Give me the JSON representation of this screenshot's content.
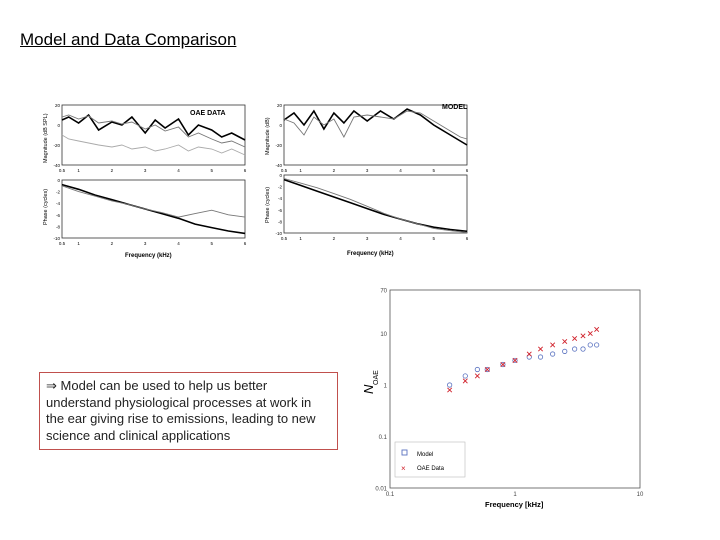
{
  "slide": {
    "title": "Model and Data Comparison",
    "callout_prefix": "⇒",
    "callout_text": "Model can be used to help us better understand physiological processes at work in the ear giving rise to emissions, leading to new science and clinical applications"
  },
  "figure_left": {
    "title": "OAE DATA",
    "ylabel_top": "Magnitude (dB SPL)",
    "ylabel_bottom": "Phase (cycles)",
    "xlabel": "Frequency (kHz)",
    "yticks_top": [
      "20",
      "0",
      "-20",
      "-40"
    ],
    "yticks_bottom": [
      "0",
      "-2",
      "-4",
      "-6",
      "-8",
      "-10"
    ],
    "xticks_top": [
      "0.5",
      "1",
      "2",
      "3",
      "4",
      "5",
      "6"
    ],
    "xticks_bottom": [
      "0.5",
      "1",
      "2",
      "3",
      "4",
      "5",
      "6"
    ]
  },
  "figure_right": {
    "title": "MODEL",
    "ylabel_top": "Magnitude (dB)",
    "ylabel_bottom": "Phase (cycles)",
    "xlabel": "Frequency (kHz)",
    "yticks_top": [
      "20",
      "0",
      "-20",
      "-40"
    ],
    "yticks_bottom": [
      "0",
      "-2",
      "-4",
      "-6",
      "-8",
      "-10"
    ],
    "xticks_top": [
      "0.5",
      "1",
      "2",
      "3",
      "4",
      "5",
      "6"
    ],
    "xticks_bottom": [
      "0.5",
      "1",
      "2",
      "3",
      "4",
      "5",
      "6"
    ]
  },
  "scatter": {
    "ylabel_main": "N",
    "ylabel_sub": "OAE",
    "xlabel": "Frequency [kHz]",
    "yticks": [
      "70",
      "10",
      "1",
      "0.1",
      "0.01"
    ],
    "xticks": [
      "0.1",
      "1",
      "10"
    ],
    "legend": [
      {
        "label": "Model",
        "color": "#5a72c0"
      },
      {
        "label": "OAE Data",
        "color": "#d0202a"
      }
    ]
  },
  "chart_data": [
    {
      "type": "line",
      "title": "OAE DATA",
      "ylabel": "Magnitude (dB SPL)",
      "xlabel": "Frequency (kHz)",
      "ylim": [
        -40,
        20
      ],
      "x": [
        0.5,
        0.7,
        1,
        1.3,
        1.6,
        2,
        2.3,
        2.6,
        3,
        3.3,
        3.6,
        4,
        4.3,
        4.6,
        5,
        5.3,
        5.6,
        6
      ],
      "series": [
        {
          "values": [
            5,
            8,
            2,
            10,
            -5,
            3,
            0,
            8,
            -8,
            5,
            -3,
            6,
            -10,
            0,
            -5,
            -12,
            -8,
            -15
          ]
        },
        {
          "values": [
            8,
            10,
            6,
            9,
            2,
            4,
            1,
            3,
            -4,
            0,
            -6,
            -2,
            -12,
            -8,
            -14,
            -18,
            -16,
            -22
          ]
        },
        {
          "values": [
            -10,
            -14,
            -16,
            -18,
            -20,
            -22,
            -20,
            -24,
            -22,
            -26,
            -24,
            -20,
            -26,
            -22,
            -24,
            -28,
            -24,
            -30
          ]
        }
      ]
    },
    {
      "type": "line",
      "ylabel": "Phase (cycles)",
      "xlabel": "Frequency (kHz)",
      "ylim": [
        -10,
        0
      ],
      "x": [
        0.5,
        1,
        1.5,
        2,
        2.5,
        3,
        3.5,
        4,
        4.5,
        5,
        5.5,
        6
      ],
      "series": [
        {
          "values": [
            -0.8,
            -1.6,
            -2.6,
            -3.4,
            -4.2,
            -5.0,
            -5.8,
            -6.6,
            -7.6,
            -8.2,
            -8.8,
            -9.2
          ]
        },
        {
          "values": [
            -1.0,
            -2.0,
            -2.8,
            -3.6,
            -4.2,
            -5.0,
            -5.6,
            -6.4,
            -5.8,
            -5.2,
            -6.0,
            -6.4
          ]
        }
      ]
    },
    {
      "type": "line",
      "title": "MODEL",
      "ylabel": "Magnitude (dB)",
      "xlabel": "Frequency (kHz)",
      "ylim": [
        -40,
        20
      ],
      "x": [
        0.5,
        0.8,
        1.1,
        1.4,
        1.7,
        2,
        2.3,
        2.6,
        3,
        3.4,
        3.8,
        4.2,
        4.6,
        5,
        5.4,
        5.8,
        6
      ],
      "series": [
        {
          "values": [
            5,
            12,
            0,
            14,
            -4,
            12,
            2,
            14,
            4,
            14,
            6,
            16,
            10,
            0,
            -8,
            -16,
            -20
          ]
        },
        {
          "values": [
            6,
            2,
            -10,
            8,
            0,
            6,
            -12,
            8,
            10,
            8,
            6,
            14,
            12,
            4,
            -4,
            -12,
            -14
          ]
        }
      ]
    },
    {
      "type": "line",
      "ylabel": "Phase (cycles)",
      "xlabel": "Frequency (kHz)",
      "ylim": [
        -10,
        0
      ],
      "x": [
        0.5,
        1,
        1.5,
        2,
        2.5,
        3,
        3.5,
        4,
        4.5,
        5,
        5.5,
        6
      ],
      "series": [
        {
          "values": [
            -0.8,
            -1.8,
            -2.8,
            -3.8,
            -4.8,
            -5.8,
            -6.8,
            -7.6,
            -8.4,
            -9.0,
            -9.4,
            -9.7
          ]
        },
        {
          "values": [
            -0.6,
            -1.4,
            -2.2,
            -3.2,
            -4.2,
            -5.4,
            -6.6,
            -7.6,
            -8.4,
            -9.2,
            -9.6,
            -9.9
          ]
        }
      ]
    },
    {
      "type": "scatter",
      "xlabel": "Frequency [kHz]",
      "ylabel": "N_OAE",
      "xscale": "log",
      "yscale": "log",
      "xlim": [
        0.1,
        10
      ],
      "ylim": [
        0.01,
        70
      ],
      "legend_position": "bottom-left",
      "series": [
        {
          "name": "Model",
          "marker": "circle",
          "color": "#5a72c0",
          "x": [
            0.3,
            0.4,
            0.5,
            0.6,
            0.8,
            1,
            1.3,
            1.6,
            2,
            2.5,
            3,
            3.5,
            4,
            4.5
          ],
          "y": [
            1,
            1.5,
            2,
            2,
            2.5,
            3,
            3.5,
            3.5,
            4,
            4.5,
            5,
            5,
            6,
            6
          ]
        },
        {
          "name": "OAE Data",
          "marker": "x",
          "color": "#d0202a",
          "x": [
            0.3,
            0.4,
            0.5,
            0.6,
            0.8,
            1,
            1.3,
            1.6,
            2,
            2.5,
            3,
            3.5,
            4,
            4.5
          ],
          "y": [
            0.8,
            1.2,
            1.5,
            2,
            2.5,
            3,
            4,
            5,
            6,
            7,
            8,
            9,
            10,
            12
          ]
        }
      ]
    }
  ]
}
